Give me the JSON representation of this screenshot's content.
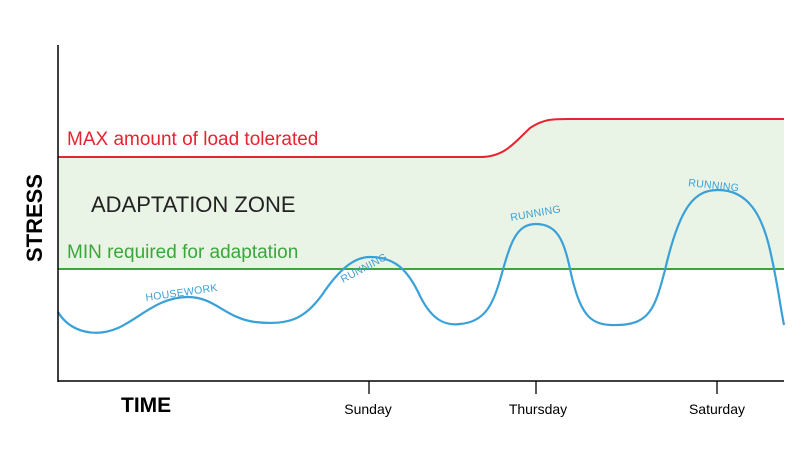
{
  "labels": {
    "max_line": "MAX amount of load tolerated",
    "min_line": "MIN required for adaptation",
    "zone": "ADAPTATION ZONE",
    "y_axis": "STRESS",
    "x_axis": "TIME"
  },
  "days": [
    "Sunday",
    "Thursday",
    "Saturday"
  ],
  "activities": [
    "HOUSEWORK",
    "RUNNING",
    "RUNNING",
    "RUNNING"
  ],
  "colors": {
    "max_line": "#e8232f",
    "min_line": "#3aa73a",
    "zone_fill": "#e9f3e6",
    "stress_curve": "#3aa0d8",
    "axes": "#000000"
  }
}
